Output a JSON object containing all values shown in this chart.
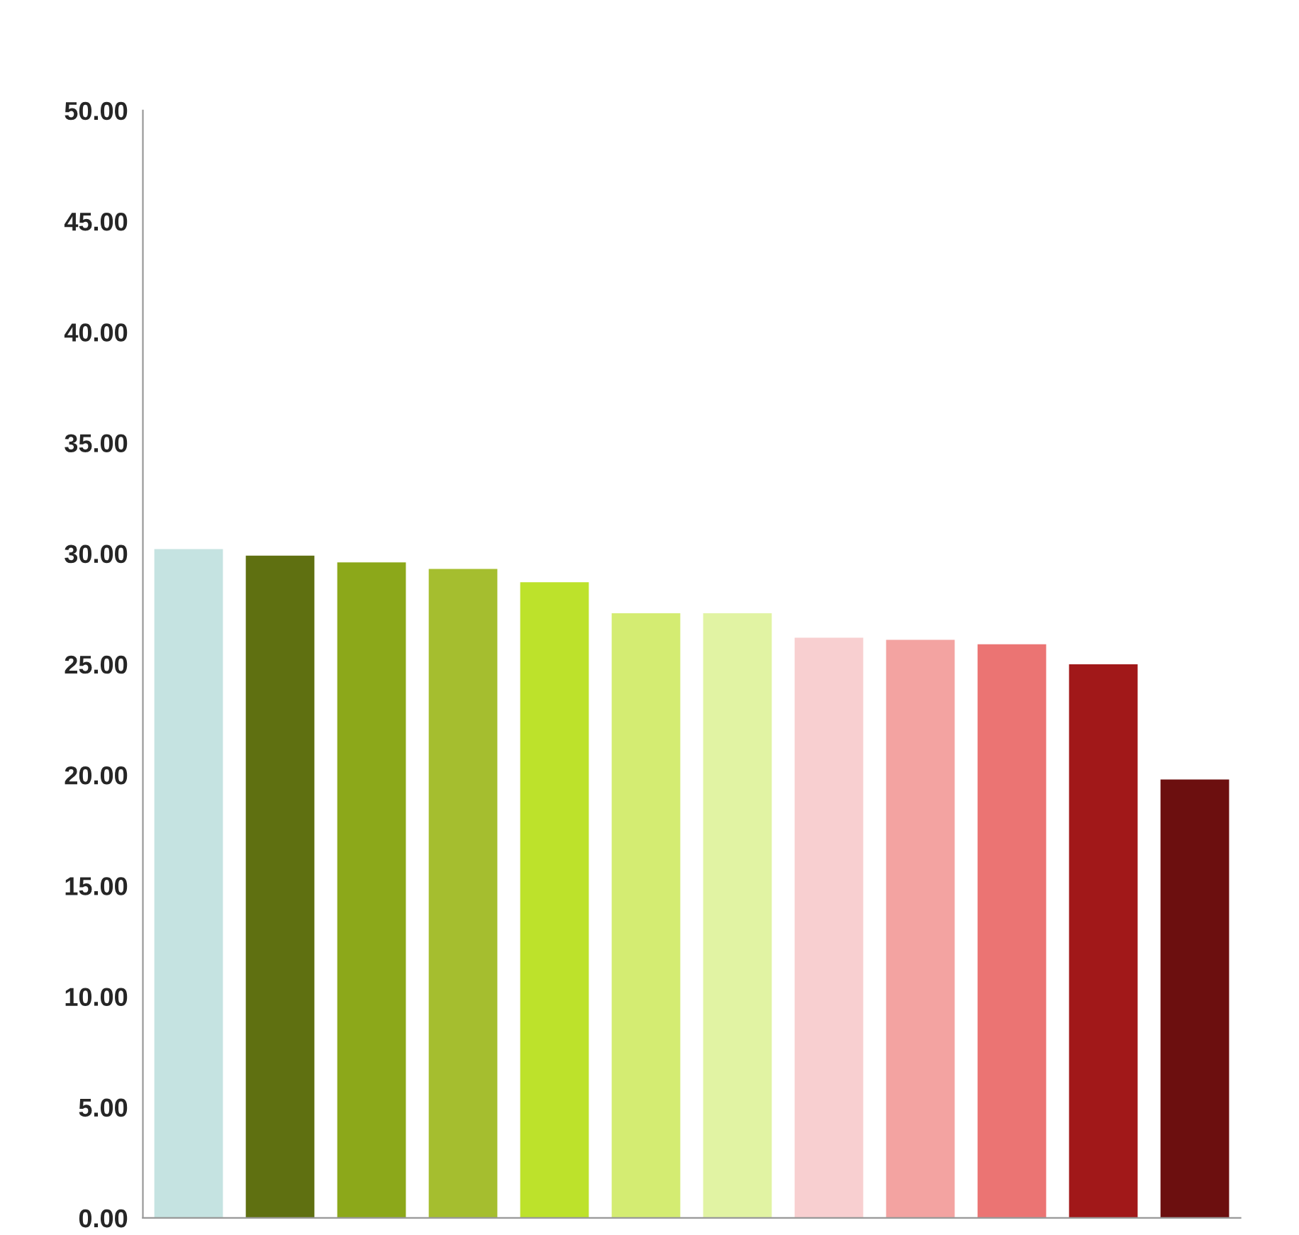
{
  "chart_data": {
    "type": "bar",
    "categories": [
      null,
      null,
      null,
      null,
      null,
      null,
      null,
      null,
      null,
      null,
      null,
      null
    ],
    "values": [
      30.2,
      29.9,
      29.6,
      29.3,
      28.7,
      27.3,
      27.3,
      26.2,
      26.1,
      25.9,
      25.0,
      19.8
    ],
    "colors": [
      "#c5e3e1",
      "#5f7011",
      "#8ca81a",
      "#a5be2f",
      "#bde22b",
      "#d4ec72",
      "#e1f3a3",
      "#f8cfd0",
      "#f3a3a1",
      "#eb7473",
      "#a11819",
      "#6c0f0f"
    ],
    "ylim": [
      0,
      50
    ],
    "yticks": [
      {
        "value": 0,
        "label": "0.00"
      },
      {
        "value": 5,
        "label": "5.00"
      },
      {
        "value": 10,
        "label": "10.00"
      },
      {
        "value": 15,
        "label": "15.00"
      },
      {
        "value": 20,
        "label": "20.00"
      },
      {
        "value": 25,
        "label": "25.00"
      },
      {
        "value": 30,
        "label": "30.00"
      },
      {
        "value": 35,
        "label": "35.00"
      },
      {
        "value": 40,
        "label": "40.00"
      },
      {
        "value": 45,
        "label": "45.00"
      },
      {
        "value": 50,
        "label": "50.00"
      }
    ],
    "grid": false,
    "legend": false
  }
}
